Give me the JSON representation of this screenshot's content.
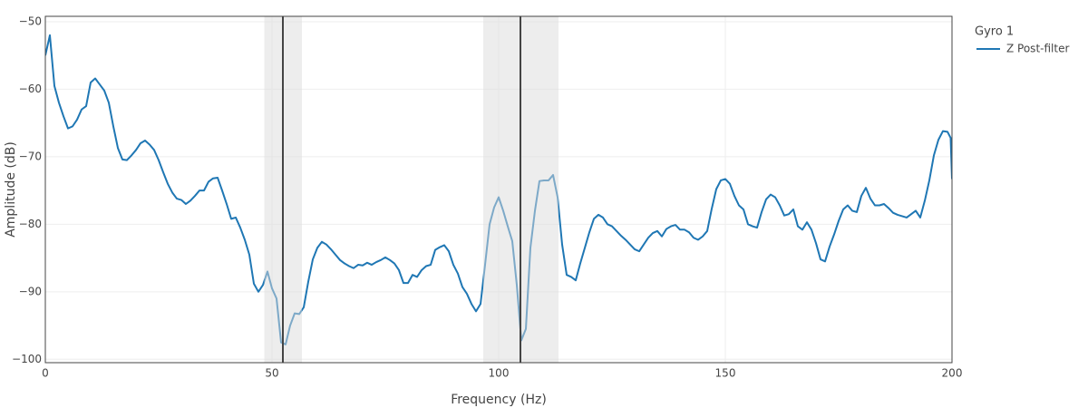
{
  "chart_data": {
    "type": "line",
    "xlabel": "Frequency (Hz)",
    "ylabel": "Amplitude (dB)",
    "legend_title": "Gyro 1",
    "x": [
      0,
      1,
      2,
      3,
      4,
      5,
      6,
      7,
      8,
      9,
      10,
      11,
      12,
      13,
      14,
      15,
      16,
      17,
      18,
      19,
      20,
      21,
      22,
      23,
      24,
      25,
      26,
      27,
      28,
      29,
      30,
      31,
      32,
      33,
      34,
      35,
      36,
      37,
      38,
      39,
      40,
      41,
      42,
      43,
      44,
      45,
      46,
      47,
      48,
      49,
      50,
      51,
      52,
      53,
      54,
      55,
      56,
      57,
      58,
      59,
      60,
      61,
      62,
      63,
      64,
      65,
      66,
      67,
      68,
      69,
      70,
      71,
      72,
      73,
      74,
      75,
      76,
      77,
      78,
      79,
      80,
      81,
      82,
      83,
      84,
      85,
      86,
      87,
      88,
      89,
      90,
      91,
      92,
      93,
      94,
      95,
      96,
      97,
      98,
      99,
      100,
      101,
      102,
      103,
      104,
      105,
      106,
      107,
      108,
      109,
      110,
      111,
      112,
      113,
      114,
      115,
      116,
      117,
      118,
      119,
      120,
      121,
      122,
      123,
      124,
      125,
      126,
      127,
      128,
      129,
      130,
      131,
      132,
      133,
      134,
      135,
      136,
      137,
      138,
      139,
      140,
      141,
      142,
      143,
      144,
      145,
      146,
      147,
      148,
      149,
      150,
      151,
      152,
      153,
      154,
      155,
      156,
      157,
      158,
      159,
      160,
      161,
      162,
      163,
      164,
      165,
      166,
      167,
      168,
      169,
      170,
      171,
      172,
      173,
      174,
      175,
      176,
      177,
      178,
      179,
      180,
      181,
      182,
      183,
      184,
      185,
      186,
      187,
      188,
      189,
      190,
      191,
      192,
      193,
      194,
      195,
      196,
      197,
      198,
      199,
      199.7,
      200
    ],
    "series": [
      {
        "name": "Z Post-filter",
        "color": "#1f77b4",
        "values": [
          -55,
          -52,
          -59.5,
          -62,
          -64,
          -65.8,
          -65.5,
          -64.5,
          -63,
          -62.5,
          -59,
          -58.4,
          -59.3,
          -60.2,
          -62,
          -65.5,
          -68.7,
          -70.4,
          -70.5,
          -69.8,
          -69,
          -68,
          -67.6,
          -68.2,
          -69,
          -70.5,
          -72.3,
          -74,
          -75.3,
          -76.2,
          -76.4,
          -77,
          -76.5,
          -75.8,
          -75,
          -75,
          -73.7,
          -73.2,
          -73.1,
          -75,
          -77,
          -79.2,
          -79,
          -80.5,
          -82.3,
          -84.5,
          -88.8,
          -90,
          -89,
          -87,
          -89.5,
          -91,
          -97.5,
          -97.8,
          -95,
          -93.2,
          -93.3,
          -92.3,
          -88.5,
          -85.2,
          -83.5,
          -82.6,
          -83,
          -83.7,
          -84.5,
          -85.3,
          -85.8,
          -86.2,
          -86.5,
          -86,
          -86.1,
          -85.7,
          -86,
          -85.6,
          -85.3,
          -84.9,
          -85.3,
          -85.8,
          -86.8,
          -88.7,
          -88.7,
          -87.5,
          -87.8,
          -86.8,
          -86.2,
          -86,
          -83.8,
          -83.4,
          -83.1,
          -84,
          -86,
          -87.3,
          -89.3,
          -90.3,
          -91.8,
          -92.9,
          -91.8,
          -86,
          -80,
          -77.5,
          -76,
          -78,
          -80.3,
          -82.5,
          -89,
          -97.2,
          -95.5,
          -83.5,
          -78,
          -73.6,
          -73.5,
          -73.5,
          -72.7,
          -76,
          -83,
          -87.5,
          -87.8,
          -88.3,
          -85.8,
          -83.5,
          -81.2,
          -79.2,
          -78.6,
          -79,
          -80,
          -80.3,
          -81,
          -81.7,
          -82.3,
          -83,
          -83.7,
          -84,
          -83,
          -82,
          -81.3,
          -81,
          -81.8,
          -80.7,
          -80.3,
          -80.1,
          -80.8,
          -80.8,
          -81.2,
          -82,
          -82.3,
          -81.8,
          -81,
          -77.7,
          -74.8,
          -73.5,
          -73.3,
          -74,
          -75.8,
          -77.2,
          -77.8,
          -80,
          -80.3,
          -80.5,
          -78.2,
          -76.3,
          -75.6,
          -76,
          -77.2,
          -78.7,
          -78.5,
          -77.8,
          -80.3,
          -80.8,
          -79.7,
          -80.8,
          -82.8,
          -85.2,
          -85.5,
          -83.3,
          -81.5,
          -79.5,
          -77.8,
          -77.2,
          -78,
          -78.2,
          -75.8,
          -74.6,
          -76.2,
          -77.2,
          -77.2,
          -77,
          -77.6,
          -78.3,
          -78.6,
          -78.8,
          -79,
          -78.5,
          -78,
          -79,
          -76.5,
          -73.5,
          -69.8,
          -67.5,
          -66.2,
          -66.3,
          -67.2,
          -73.3
        ]
      }
    ],
    "xlim": [
      0,
      200
    ],
    "xticks": [
      0,
      50,
      100,
      150,
      200
    ],
    "ylim": [
      -100.5,
      -49.2
    ],
    "yticks": [
      {
        "value": -50,
        "label": "−50"
      },
      {
        "value": -60,
        "label": "−60"
      },
      {
        "value": -70,
        "label": "−70"
      },
      {
        "value": -80,
        "label": "−80"
      },
      {
        "value": -90,
        "label": "−90"
      },
      {
        "value": -100,
        "label": "−100"
      }
    ],
    "grid": true,
    "bands": [
      [
        48.3,
        56.6
      ],
      [
        96.6,
        113.2
      ]
    ],
    "markers": [
      52.4,
      104.8
    ]
  }
}
